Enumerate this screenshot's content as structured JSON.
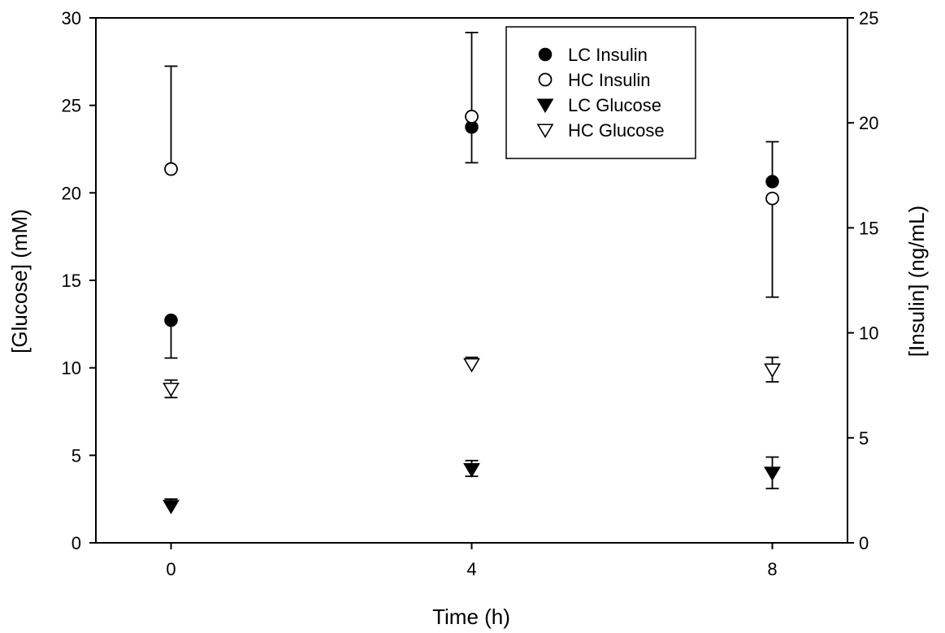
{
  "chart_data": {
    "type": "scatter",
    "title": "",
    "xlabel": "Time (h)",
    "ylabel_left": "[Glucose] (mM)",
    "ylabel_right": "[Insulin] (ng/mL)",
    "x_ticks": [
      "0",
      "4",
      "8"
    ],
    "x_values": [
      0,
      4,
      8
    ],
    "xlim": [
      -1,
      9
    ],
    "ylim_left": [
      0,
      30
    ],
    "ylim_right": [
      0,
      25
    ],
    "yticks_left": [
      "0",
      "5",
      "10",
      "15",
      "20",
      "25",
      "30"
    ],
    "yticks_right": [
      "0",
      "5",
      "10",
      "15",
      "20",
      "25"
    ],
    "grid": false,
    "legend_position": "top-center",
    "series": [
      {
        "name": "LC Insulin",
        "axis": "right",
        "marker": "filled-circle",
        "x": [
          0,
          4,
          8
        ],
        "y": [
          10.6,
          19.8,
          17.2
        ],
        "err_high": [
          0,
          0,
          1.9
        ],
        "err_low": [
          1.8,
          1.7,
          0
        ]
      },
      {
        "name": "HC Insulin",
        "axis": "right",
        "marker": "open-circle",
        "x": [
          0,
          4,
          8
        ],
        "y": [
          17.8,
          20.3,
          16.4
        ],
        "err_high": [
          4.9,
          4.0,
          0
        ],
        "err_low": [
          0,
          0,
          4.7
        ]
      },
      {
        "name": "LC Glucose",
        "axis": "left",
        "marker": "filled-triangle-down",
        "x": [
          0,
          4,
          8
        ],
        "y": [
          2.1,
          4.2,
          4.0
        ],
        "err_high": [
          0.4,
          0.5,
          0.9
        ],
        "err_low": [
          0,
          0.4,
          0.9
        ]
      },
      {
        "name": "HC Glucose",
        "axis": "left",
        "marker": "open-triangle-down",
        "x": [
          0,
          4,
          8
        ],
        "y": [
          8.8,
          10.2,
          9.9
        ],
        "err_high": [
          0.5,
          0.4,
          0.7
        ],
        "err_low": [
          0.5,
          0,
          0.7
        ]
      }
    ],
    "colors": {
      "ink": "#000000",
      "background": "#ffffff"
    }
  }
}
